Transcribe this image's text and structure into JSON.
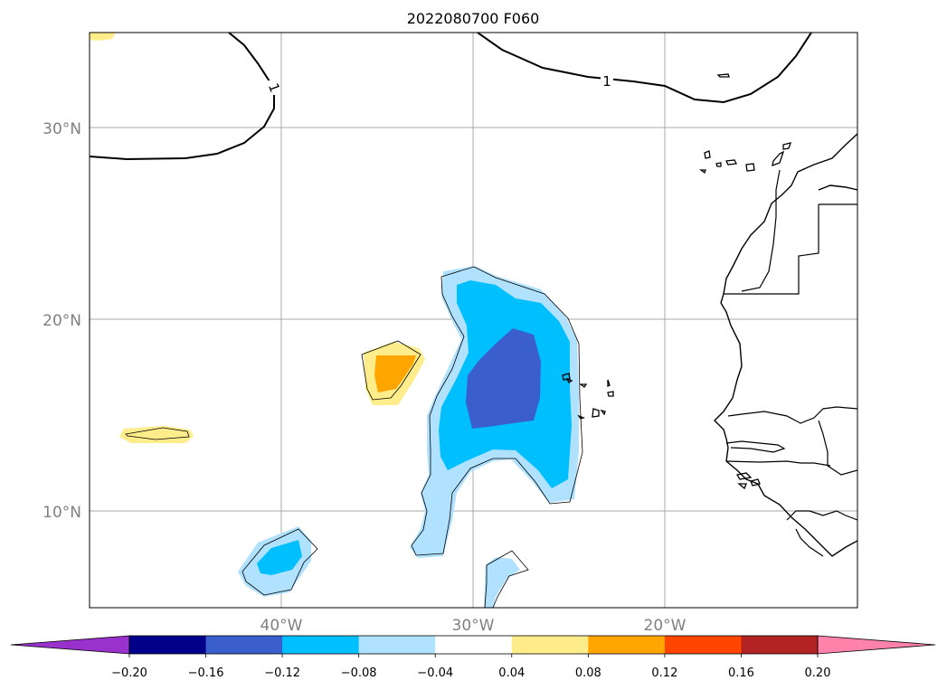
{
  "title": "2022080700 F060",
  "map": {
    "lat_labels": [
      "30°N",
      "20°N",
      "10°N"
    ],
    "lon_labels": [
      "40°W",
      "30°W",
      "20°W"
    ],
    "lat_values": [
      30,
      20,
      10
    ],
    "lon_values": [
      -40,
      -30,
      -20
    ],
    "gridlines": true,
    "contour_label": "1"
  },
  "colorbar": {
    "ticks": [
      "−0.20",
      "−0.16",
      "−0.12",
      "−0.08",
      "−0.04",
      "0.04",
      "0.08",
      "0.12",
      "0.16",
      "0.20"
    ],
    "colors": [
      "#9932cc",
      "#00008b",
      "#3a5fcd",
      "#00bfff",
      "#b0e2ff",
      "#ffffff",
      "#ffec8b",
      "#ffa500",
      "#ff4500",
      "#b22222",
      "#ff82ab"
    ],
    "extend": "both"
  }
}
